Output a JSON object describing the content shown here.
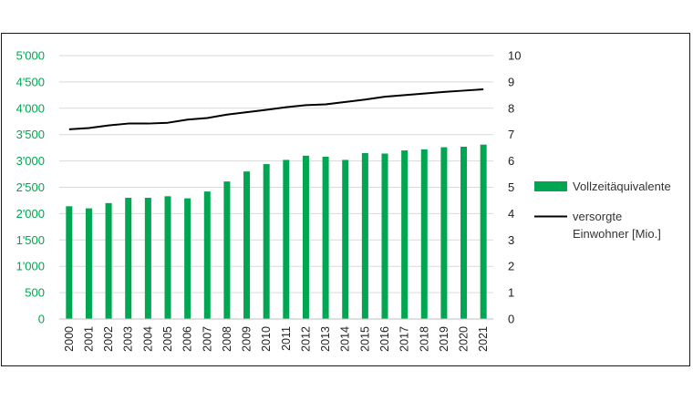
{
  "chart_data": {
    "type": "bar+line",
    "categories": [
      "2000",
      "2001",
      "2002",
      "2003",
      "2004",
      "2005",
      "2006",
      "2007",
      "2008",
      "2009",
      "2010",
      "2011",
      "2012",
      "2013",
      "2014",
      "2015",
      "2016",
      "2017",
      "2018",
      "2019",
      "2020",
      "2021"
    ],
    "series": [
      {
        "name": "Vollzeitäquivalente",
        "type": "bar",
        "axis": "left",
        "color": "#00a651",
        "values": [
          2140,
          2100,
          2200,
          2300,
          2300,
          2330,
          2290,
          2420,
          2610,
          2800,
          2940,
          3020,
          3100,
          3080,
          3020,
          3150,
          3140,
          3200,
          3220,
          3260,
          3270,
          3310
        ]
      },
      {
        "name_lines": [
          "versorgte",
          "Einwohner [Mio.]"
        ],
        "type": "line",
        "axis": "right",
        "color": "#000000",
        "values": [
          7.2,
          7.25,
          7.35,
          7.42,
          7.42,
          7.45,
          7.57,
          7.63,
          7.76,
          7.85,
          7.94,
          8.04,
          8.12,
          8.15,
          8.24,
          8.33,
          8.44,
          8.5,
          8.56,
          8.62,
          8.67,
          8.72
        ]
      }
    ],
    "y_left": {
      "ylim": [
        0,
        5000
      ],
      "ticks": [
        0,
        500,
        1000,
        1500,
        2000,
        2500,
        3000,
        3500,
        4000,
        4500,
        5000
      ],
      "tick_labels": [
        "0",
        "500",
        "1'000",
        "1'500",
        "2'000",
        "2'500",
        "3'000",
        "3'500",
        "4'000",
        "4'500",
        "5'000"
      ],
      "color": "#00a651"
    },
    "y_right": {
      "ylim": [
        0,
        10
      ],
      "ticks": [
        0,
        1,
        2,
        3,
        4,
        5,
        6,
        7,
        8,
        9,
        10
      ],
      "tick_labels": [
        "0",
        "1",
        "2",
        "3",
        "4",
        "5",
        "6",
        "7",
        "8",
        "9",
        "10"
      ]
    },
    "grid": "horizontal",
    "legend": "right"
  }
}
